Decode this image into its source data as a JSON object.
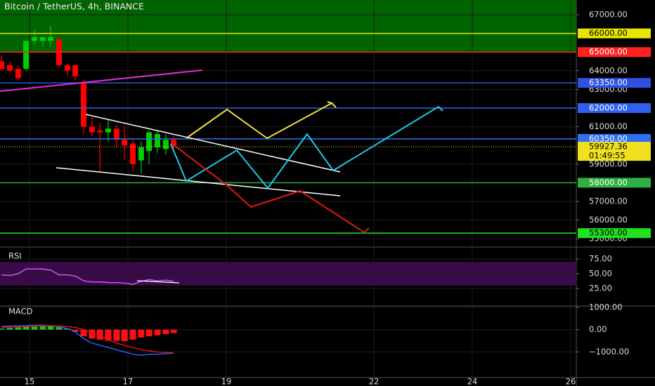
{
  "chart_data": [
    {
      "type": "candlestick",
      "title": "Bitcoin / TetherUS, 4h, BINANCE",
      "x": [
        14.43,
        14.6,
        14.77,
        14.93,
        15.1,
        15.27,
        15.43,
        15.6,
        15.77,
        15.93,
        16.1,
        16.27,
        16.43,
        16.6,
        16.77,
        16.93,
        17.1,
        17.27,
        17.43,
        17.6,
        17.77,
        17.93
      ],
      "open": [
        64500,
        64300,
        64100,
        64100,
        65600,
        65600,
        65600,
        65700,
        64300,
        64300,
        63400,
        61000,
        60800,
        60700,
        60900,
        60300,
        60100,
        59200,
        59700,
        59900,
        59800,
        60300
      ],
      "high": [
        64800,
        64500,
        64300,
        65600,
        66200,
        65800,
        66400,
        65700,
        64400,
        64300,
        63500,
        61500,
        61200,
        61400,
        61100,
        61000,
        60300,
        60200,
        60800,
        60800,
        60600,
        60500
      ],
      "low": [
        64000,
        63900,
        63500,
        64000,
        65400,
        65300,
        65300,
        64200,
        63700,
        63500,
        60600,
        60500,
        58600,
        60200,
        59900,
        59200,
        58600,
        58500,
        59000,
        59600,
        59500,
        59800
      ],
      "close": [
        64100,
        64000,
        63600,
        65600,
        65800,
        65800,
        65800,
        64300,
        64000,
        63700,
        61000,
        60700,
        60700,
        60900,
        60300,
        60000,
        59000,
        59900,
        60700,
        60600,
        60300,
        60000
      ],
      "up_color": "#00d000",
      "down_color": "#ff0000",
      "xlim": [
        14.4,
        26.114
      ],
      "xticks": [
        15,
        17,
        19,
        22,
        24,
        26
      ],
      "ylim": [
        54630,
        67790
      ],
      "yticks": [
        {
          "value": 67000,
          "label": "67000.00"
        },
        {
          "value": 64000,
          "label": "64000.00"
        },
        {
          "value": 63000,
          "label": "63000.00"
        },
        {
          "value": 61000,
          "label": "61000.00"
        },
        {
          "value": 59000,
          "label": "59000.00"
        },
        {
          "value": 57000,
          "label": "57000.00"
        },
        {
          "value": 56000,
          "label": "56000.00"
        },
        {
          "value": 55000,
          "label": "55000.00"
        }
      ],
      "zone": {
        "from": 65000,
        "to": 67790,
        "color": "#006400"
      },
      "levels": [
        {
          "value": 66000,
          "label": "66000.00",
          "color": "#e6e600",
          "text_color": "#000"
        },
        {
          "value": 65000,
          "label": "65000.00",
          "color": "#ff2020",
          "text_color": "#fff"
        },
        {
          "value": 63350,
          "label": "63350.00",
          "color": "#3050e0",
          "text_color": "#fff"
        },
        {
          "value": 62000,
          "label": "62000.00",
          "color": "#3060f0",
          "text_color": "#fff"
        },
        {
          "value": 60350,
          "label": "60350.00",
          "color": "#3070f0",
          "text_color": "#fff"
        },
        {
          "value": 58000,
          "label": "58000.00",
          "color": "#30b040",
          "text_color": "#fff"
        },
        {
          "value": 55300,
          "label": "55300.00",
          "color": "#20e020",
          "text_color": "#000"
        }
      ],
      "last_price": {
        "value": 59927.36,
        "label": "59927.36",
        "countdown": "01:49:55",
        "color": "#f0e020"
      }
    },
    {
      "type": "line",
      "title": "RSI",
      "values": [
        48,
        47,
        50,
        58,
        58,
        58,
        56,
        48,
        48,
        46,
        38,
        36,
        36,
        35,
        35,
        34,
        32,
        37,
        40,
        38,
        39,
        37
      ],
      "color": "#c060e0",
      "band": [
        30,
        70
      ],
      "band_color": "#3a0a4a",
      "ylim": [
        -3.6,
        91.7
      ],
      "yticks": [
        {
          "value": 75,
          "label": "75.00"
        },
        {
          "value": 50,
          "label": "50.00"
        },
        {
          "value": 25,
          "label": "25.00"
        }
      ]
    },
    {
      "type": "macd",
      "title": "MACD",
      "histogram": [
        50,
        80,
        100,
        150,
        200,
        220,
        200,
        150,
        50,
        -100,
        -300,
        -400,
        -450,
        -500,
        -500,
        -520,
        -450,
        -350,
        -300,
        -250,
        -200,
        -150
      ],
      "macd_line": [
        150,
        160,
        170,
        180,
        200,
        190,
        180,
        120,
        50,
        -100,
        -400,
        -600,
        -700,
        -800,
        -900,
        -1000,
        -1100,
        -1150,
        -1100,
        -1100,
        -1080,
        -1050
      ],
      "signal_line": [
        100,
        120,
        130,
        150,
        160,
        170,
        170,
        160,
        140,
        100,
        0,
        -150,
        -300,
        -450,
        -600,
        -700,
        -800,
        -900,
        -950,
        -1000,
        -1020,
        -1040
      ],
      "up_color": "#20c020",
      "down_color": "#ff1010",
      "macd_color": "#2060ff",
      "signal_color": "#e01010",
      "ylim": [
        -2210,
        1060
      ],
      "yticks": [
        {
          "value": 1000,
          "label": "1000.00"
        },
        {
          "value": 0,
          "label": "0.00"
        },
        {
          "value": -1000,
          "label": "−1000.00"
        }
      ]
    }
  ]
}
